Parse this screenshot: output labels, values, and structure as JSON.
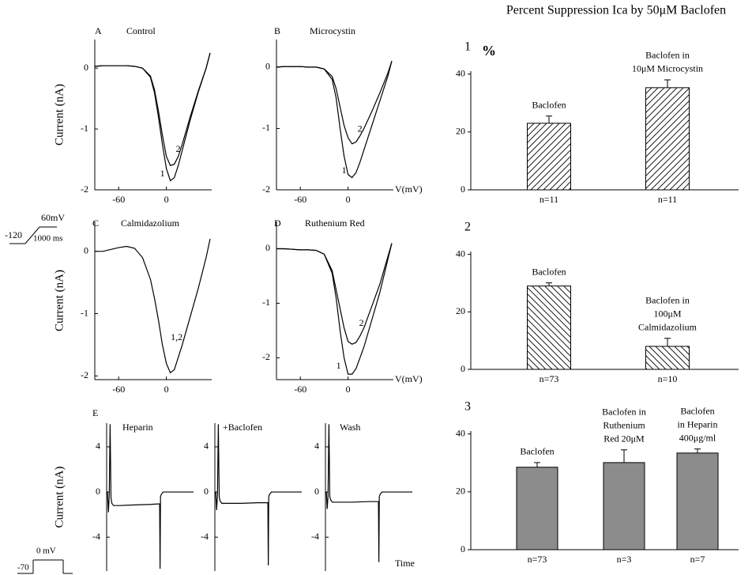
{
  "figure_title": "Percent Suppression Ica by 50μM Baclofen",
  "protocol_labels": {
    "ramp_start": "-120",
    "ramp_end": "60mV",
    "ramp_duration": "1000 ms",
    "step_level": "0 mV",
    "step_hold": "-70"
  },
  "chart_data": [
    {
      "type": "line",
      "panel": "A",
      "title": "Control",
      "ylabel": "Current (nA)",
      "x": [
        -90,
        -80,
        -70,
        -60,
        -50,
        -40,
        -30,
        -20,
        -15,
        -10,
        -5,
        0,
        5,
        10,
        15,
        20,
        30,
        40,
        50,
        55
      ],
      "xlim": [
        -90,
        57
      ],
      "ylim": [
        -2,
        0.47
      ],
      "xticks": [
        -60,
        0
      ],
      "yticks": [
        0,
        -1,
        -2
      ],
      "series": [
        {
          "name": "1",
          "color": "#000000",
          "values": [
            0.03,
            0.04,
            0.04,
            0.04,
            0.04,
            0.03,
            0.0,
            -0.15,
            -0.4,
            -0.8,
            -1.25,
            -1.65,
            -1.85,
            -1.8,
            -1.6,
            -1.35,
            -0.85,
            -0.4,
            0.0,
            0.25
          ]
        },
        {
          "name": "2",
          "color": "#000000",
          "values": [
            0.03,
            0.04,
            0.04,
            0.04,
            0.04,
            0.03,
            0.0,
            -0.13,
            -0.35,
            -0.7,
            -1.1,
            -1.45,
            -1.6,
            -1.58,
            -1.45,
            -1.25,
            -0.8,
            -0.38,
            0.0,
            0.25
          ]
        }
      ]
    },
    {
      "type": "line",
      "panel": "B",
      "title": "Microcystin",
      "xlabel": "V(mV)",
      "x": [
        -90,
        -80,
        -70,
        -60,
        -50,
        -40,
        -30,
        -20,
        -15,
        -10,
        -5,
        0,
        5,
        10,
        15,
        20,
        30,
        40,
        50,
        55
      ],
      "xlim": [
        -90,
        57
      ],
      "ylim": [
        -2,
        0.45
      ],
      "xticks": [
        -60,
        0
      ],
      "yticks": [
        0,
        -1,
        -2
      ],
      "series": [
        {
          "name": "1",
          "color": "#000000",
          "values": [
            0.0,
            0.01,
            0.01,
            0.01,
            0.0,
            0.0,
            -0.03,
            -0.2,
            -0.5,
            -1.0,
            -1.45,
            -1.75,
            -1.8,
            -1.72,
            -1.55,
            -1.35,
            -0.95,
            -0.55,
            -0.15,
            0.1
          ]
        },
        {
          "name": "2",
          "color": "#000000",
          "values": [
            0.0,
            0.01,
            0.01,
            0.01,
            0.0,
            0.0,
            -0.03,
            -0.15,
            -0.35,
            -0.65,
            -0.95,
            -1.15,
            -1.25,
            -1.22,
            -1.12,
            -1.0,
            -0.72,
            -0.42,
            -0.1,
            0.1
          ]
        }
      ]
    },
    {
      "type": "line",
      "panel": "C",
      "title": "Calmidazolium",
      "ylabel": "Current (nA)",
      "x": [
        -90,
        -80,
        -70,
        -60,
        -50,
        -40,
        -30,
        -20,
        -15,
        -10,
        -5,
        0,
        5,
        10,
        15,
        20,
        30,
        40,
        50,
        55
      ],
      "xlim": [
        -90,
        57
      ],
      "ylim": [
        -2.06,
        0.48
      ],
      "xticks": [
        -60,
        0
      ],
      "yticks": [
        0,
        -1,
        -2
      ],
      "series": [
        {
          "name": "1,2",
          "color": "#000000",
          "values": [
            0.0,
            0.0,
            0.03,
            0.06,
            0.08,
            0.05,
            -0.1,
            -0.45,
            -0.75,
            -1.1,
            -1.5,
            -1.8,
            -1.95,
            -1.9,
            -1.7,
            -1.5,
            -1.05,
            -0.6,
            -0.1,
            0.2
          ]
        }
      ]
    },
    {
      "type": "line",
      "panel": "D",
      "title": "Ruthenium Red",
      "xlabel": "V(mV)",
      "x": [
        -90,
        -80,
        -70,
        -60,
        -50,
        -40,
        -30,
        -20,
        -15,
        -10,
        -5,
        0,
        5,
        10,
        15,
        20,
        30,
        40,
        50,
        55
      ],
      "xlim": [
        -90,
        57
      ],
      "ylim": [
        -2.4,
        0.5
      ],
      "xticks": [
        -60,
        0
      ],
      "yticks": [
        0,
        -1,
        -2
      ],
      "series": [
        {
          "name": "1",
          "color": "#000000",
          "values": [
            0.0,
            0.0,
            -0.01,
            -0.02,
            -0.02,
            -0.03,
            -0.1,
            -0.45,
            -0.9,
            -1.5,
            -2.0,
            -2.3,
            -2.3,
            -2.2,
            -2.0,
            -1.8,
            -1.3,
            -0.8,
            -0.2,
            0.1
          ]
        },
        {
          "name": "2",
          "color": "#000000",
          "values": [
            0.0,
            0.0,
            -0.01,
            -0.02,
            -0.02,
            -0.03,
            -0.1,
            -0.4,
            -0.75,
            -1.1,
            -1.45,
            -1.7,
            -1.75,
            -1.72,
            -1.6,
            -1.45,
            -1.05,
            -0.65,
            -0.15,
            0.1
          ]
        }
      ]
    },
    {
      "type": "line",
      "panel": "E",
      "title": "Heparin",
      "ylabel": "Current (nA)",
      "x": [
        0,
        1,
        2,
        3,
        4,
        5,
        6,
        8,
        15,
        30,
        50,
        61,
        61.5,
        62,
        63,
        65,
        80,
        100
      ],
      "xlim": [
        0,
        100
      ],
      "ylim": [
        -7,
        6.1
      ],
      "yticks": [
        4,
        0,
        -4
      ],
      "series": [
        {
          "color": "#000000",
          "values": [
            0,
            0,
            -1.8,
            -0.3,
            6,
            -0.5,
            -1.0,
            -1.2,
            -1.2,
            -1.15,
            -1.1,
            -1.05,
            -6.8,
            -0.4,
            -0.2,
            0,
            0,
            0
          ]
        }
      ]
    },
    {
      "type": "line",
      "title": "+Baclofen",
      "x": [
        0,
        1,
        2,
        3,
        4,
        5,
        6,
        8,
        15,
        30,
        50,
        61,
        61.5,
        62,
        63,
        65,
        80,
        100
      ],
      "xlim": [
        0,
        100
      ],
      "ylim": [
        -7,
        6.1
      ],
      "yticks": [
        4,
        0,
        -4
      ],
      "series": [
        {
          "color": "#000000",
          "values": [
            0,
            0,
            -1.6,
            -0.3,
            6,
            -0.4,
            -0.8,
            -1.0,
            -1.0,
            -1.0,
            -0.95,
            -0.95,
            -6.5,
            -0.4,
            -0.2,
            0,
            0,
            0
          ]
        }
      ]
    },
    {
      "type": "line",
      "title": "Wash",
      "xlabel": "Time",
      "x": [
        0,
        1,
        2,
        3,
        4,
        5,
        6,
        8,
        15,
        30,
        50,
        61,
        61.5,
        62,
        63,
        65,
        80,
        100
      ],
      "xlim": [
        0,
        100
      ],
      "ylim": [
        -7,
        6.1
      ],
      "yticks": [
        4,
        0,
        -4
      ],
      "series": [
        {
          "color": "#000000",
          "values": [
            0,
            0,
            -1.5,
            -0.3,
            6,
            -0.4,
            -0.7,
            -0.9,
            -0.9,
            -0.9,
            -0.85,
            -0.85,
            -6.2,
            -0.4,
            -0.2,
            0,
            0,
            0
          ]
        }
      ]
    },
    {
      "type": "bar",
      "panel": "1",
      "ylabel": "%",
      "categories": [
        "n=11",
        "n=11"
      ],
      "values": [
        23,
        35.3
      ],
      "errors": [
        2.5,
        2.7
      ],
      "bar_labels": [
        [
          "Baclofen"
        ],
        [
          "Baclofen in",
          "10μM Microcystin"
        ]
      ],
      "ylim": [
        0,
        41
      ],
      "yticks": [
        0,
        20,
        40
      ],
      "pattern": "hatch-up",
      "color": "#000000"
    },
    {
      "type": "bar",
      "panel": "2",
      "categories": [
        "n=73",
        "n=10"
      ],
      "values": [
        29,
        8
      ],
      "errors": [
        1.1,
        2.8
      ],
      "bar_labels": [
        [
          "Baclofen"
        ],
        [
          "Baclofen in",
          "100μM",
          "Calmidazolium"
        ]
      ],
      "ylim": [
        0,
        41
      ],
      "yticks": [
        0,
        20,
        40
      ],
      "pattern": "hatch-down",
      "color": "#000000"
    },
    {
      "type": "bar",
      "panel": "3",
      "categories": [
        "n=73",
        "n=3",
        "n=7"
      ],
      "values": [
        28.5,
        30.1,
        33.4
      ],
      "errors": [
        1.6,
        4.4,
        1.4
      ],
      "bar_labels": [
        [
          "Baclofen"
        ],
        [
          "Baclofen in",
          "Ruthenium",
          "Red 20μM"
        ],
        [
          "Baclofen",
          "in Heparin",
          "400μg/ml"
        ]
      ],
      "ylim": [
        0,
        41
      ],
      "yticks": [
        0,
        20,
        40
      ],
      "pattern": "gray",
      "color": "#000000"
    }
  ]
}
